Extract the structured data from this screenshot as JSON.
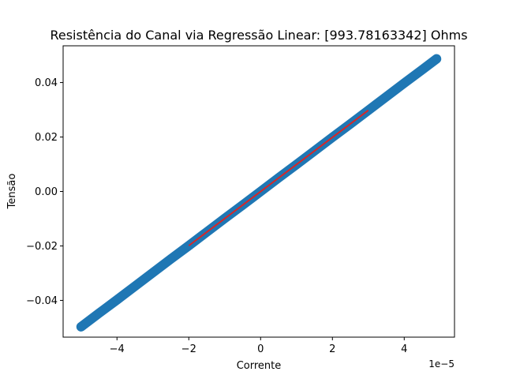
{
  "chart_data": {
    "type": "scatter",
    "title": "Resistência do Canal via Regressão Linear: [993.78163342] Ohms",
    "xlabel": "Corrente",
    "ylabel": "Tensão",
    "x_offset_label": "1e−5",
    "xlim": [
      -5.5e-05,
      5.4e-05
    ],
    "ylim": [
      -0.0535,
      0.0535
    ],
    "x_ticks": [
      -4e-05,
      -2e-05,
      0,
      2e-05,
      4e-05
    ],
    "x_tick_labels": [
      "−4",
      "−2",
      "0",
      "2",
      "4"
    ],
    "y_ticks": [
      -0.04,
      -0.02,
      0.0,
      0.02,
      0.04
    ],
    "y_tick_labels": [
      "−0.04",
      "−0.02",
      "0.00",
      "0.02",
      "0.04"
    ],
    "grid": false,
    "series": [
      {
        "kind": "scatter",
        "color": "#1f77b4",
        "x": [
          -5e-05,
          -4.5e-05,
          -4e-05,
          -3.5e-05,
          -3e-05,
          -2.5e-05,
          -2e-05,
          -1.5e-05,
          -1e-05,
          -5e-06,
          0.0,
          5e-06,
          1e-05,
          1.5e-05,
          2e-05,
          2.5e-05,
          3e-05,
          3.5e-05,
          4e-05,
          4.5e-05,
          4.9e-05
        ],
        "y": [
          -0.0497,
          -0.0447,
          -0.0398,
          -0.0348,
          -0.0298,
          -0.0248,
          -0.0199,
          -0.0149,
          -0.0099,
          -0.005,
          0.0,
          0.005,
          0.0099,
          0.0149,
          0.0199,
          0.0248,
          0.0298,
          0.0348,
          0.0398,
          0.0447,
          0.0487
        ]
      },
      {
        "kind": "line",
        "color": "#d62728",
        "x": [
          -2e-05,
          3e-05
        ],
        "y": [
          -0.0199,
          0.0298
        ]
      }
    ]
  }
}
